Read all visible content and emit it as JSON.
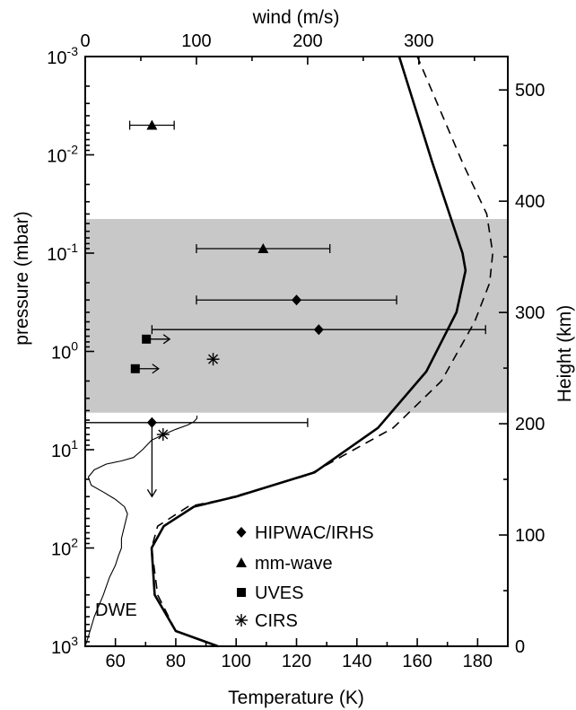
{
  "chart_data": {
    "type": "line",
    "axes": {
      "bottom": {
        "label": "Temperature (K)",
        "range": [
          50,
          190
        ],
        "ticks": [
          60,
          80,
          100,
          120,
          140,
          160,
          180
        ],
        "tick_labels": [
          "60",
          "80",
          "100",
          "120",
          "140",
          "160",
          "180"
        ]
      },
      "top": {
        "label": "wind (m/s)",
        "range": [
          0,
          380
        ],
        "ticks": [
          0,
          100,
          200,
          300
        ],
        "tick_labels": [
          "0",
          "100",
          "200",
          "300"
        ]
      },
      "left": {
        "label": "pressure (mbar)",
        "scale": "log",
        "range": [
          0.001,
          1000
        ],
        "inverted": true,
        "ticks": [
          0.001,
          0.01,
          0.1,
          1,
          10,
          100,
          1000
        ],
        "tick_labels": [
          {
            "base": "10",
            "exp": "-3"
          },
          {
            "base": "10",
            "exp": "-2"
          },
          {
            "base": "10",
            "exp": "-1"
          },
          {
            "base": "10",
            "exp": "0"
          },
          {
            "base": "10",
            "exp": "1"
          },
          {
            "base": "10",
            "exp": "2"
          },
          {
            "base": "10",
            "exp": "3"
          }
        ]
      },
      "right": {
        "label": "Height (km)",
        "range": [
          0,
          530
        ],
        "ticks": [
          0,
          100,
          200,
          300,
          400,
          500
        ],
        "tick_labels": [
          "0",
          "100",
          "200",
          "300",
          "400",
          "500"
        ]
      }
    },
    "shaded_region": {
      "pressure_top": 0.045,
      "pressure_bottom": 4.2,
      "color": "#c8c8c8"
    },
    "series": [
      {
        "style": "solid-thick",
        "x_temperature": [
          94,
          80,
          73,
          72,
          76,
          86,
          100,
          126,
          147,
          163,
          173,
          176,
          175,
          165,
          154
        ],
        "y_pressure": [
          1000,
          700,
          300,
          100,
          60,
          38,
          30,
          17,
          6,
          1.6,
          0.4,
          0.15,
          0.1,
          0.012,
          0.001
        ]
      },
      {
        "style": "dashed",
        "x_temperature": [
          94,
          80,
          74,
          72,
          74,
          84,
          96,
          124,
          152,
          168,
          179,
          184,
          185,
          183,
          175,
          160
        ],
        "y_pressure": [
          1000,
          700,
          300,
          100,
          60,
          38,
          32,
          18,
          6,
          2,
          0.5,
          0.2,
          0.1,
          0.04,
          0.012,
          0.001
        ]
      },
      {
        "name": "DWE",
        "style": "solid-thin",
        "x_temperature": [
          50,
          51,
          53,
          56,
          58,
          60,
          61,
          62,
          62,
          63,
          64,
          63,
          60,
          56,
          52,
          51,
          53,
          57,
          62,
          66,
          69,
          72,
          76,
          80,
          84,
          86,
          87,
          87
        ],
        "y_pressure": [
          1000,
          800,
          500,
          300,
          200,
          150,
          120,
          100,
          80,
          60,
          45,
          38,
          32,
          27,
          23,
          19,
          16,
          14,
          13,
          12,
          10,
          8,
          7,
          6.2,
          5.6,
          5.2,
          4.8,
          4.5
        ]
      }
    ],
    "markers": [
      {
        "label": "HIPWAC/IRHS",
        "symbol": "diamond",
        "wind": 190,
        "pressure": 0.3,
        "wind_err": [
          100,
          280
        ],
        "arrow": null
      },
      {
        "label": "HIPWAC/IRHS",
        "symbol": "diamond",
        "wind": 210,
        "pressure": 0.6,
        "wind_err": [
          60,
          360
        ],
        "arrow": null
      },
      {
        "label": "HIPWAC/IRHS",
        "symbol": "diamond",
        "wind": 60,
        "pressure": 5.3,
        "wind_err": [
          0,
          200
        ],
        "arrow": "down",
        "arrow_to_pressure": 30
      },
      {
        "label": "mm-wave",
        "symbol": "triangle",
        "wind": 60,
        "pressure": 0.005,
        "wind_err": [
          40,
          80
        ],
        "arrow": null
      },
      {
        "label": "mm-wave",
        "symbol": "triangle",
        "wind": 160,
        "pressure": 0.09,
        "wind_err": [
          100,
          220
        ],
        "arrow": null
      },
      {
        "label": "UVES",
        "symbol": "square",
        "wind": 55,
        "pressure": 0.75,
        "wind_err": null,
        "arrow": "right"
      },
      {
        "label": "UVES",
        "symbol": "square",
        "wind": 45,
        "pressure": 1.5,
        "wind_err": null,
        "arrow": "right"
      },
      {
        "label": "CIRS",
        "symbol": "asterisk",
        "wind": 115,
        "pressure": 1.2,
        "wind_err": null,
        "arrow": null
      },
      {
        "label": "CIRS",
        "symbol": "asterisk",
        "wind": 70,
        "pressure": 7,
        "wind_err": null,
        "arrow": null
      }
    ],
    "legend": {
      "placement": "bottom-center",
      "entries": [
        {
          "symbol": "diamond",
          "label": "HIPWAC/IRHS"
        },
        {
          "symbol": "triangle",
          "label": "mm-wave"
        },
        {
          "symbol": "square",
          "label": "UVES"
        },
        {
          "symbol": "asterisk",
          "label": "CIRS"
        }
      ]
    },
    "annotations": [
      {
        "text": "DWE"
      }
    ]
  }
}
